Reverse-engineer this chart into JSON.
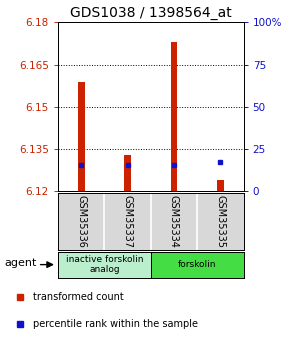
{
  "title": "GDS1038 / 1398564_at",
  "samples": [
    "GSM35336",
    "GSM35337",
    "GSM35334",
    "GSM35335"
  ],
  "red_values": [
    6.159,
    6.133,
    6.173,
    6.124
  ],
  "blue_values": [
    6.1295,
    6.1295,
    6.1295,
    6.1305
  ],
  "y_min": 6.12,
  "y_max": 6.18,
  "y_ticks_left": [
    6.12,
    6.135,
    6.15,
    6.165,
    6.18
  ],
  "y_ticks_right": [
    0,
    25,
    50,
    75,
    100
  ],
  "dotted_lines": [
    6.135,
    6.15,
    6.165
  ],
  "groups": [
    {
      "label": "inactive forskolin\nanalog",
      "start": 0,
      "end": 2,
      "color": "#bbeecc"
    },
    {
      "label": "forskolin",
      "start": 2,
      "end": 4,
      "color": "#44dd44"
    }
  ],
  "agent_label": "agent",
  "legend_red": "transformed count",
  "legend_blue": "percentile rank within the sample",
  "bar_width": 0.15,
  "red_color": "#cc2200",
  "blue_color": "#1111cc",
  "title_fontsize": 10,
  "tick_fontsize": 7.5,
  "background_color": "#ffffff"
}
